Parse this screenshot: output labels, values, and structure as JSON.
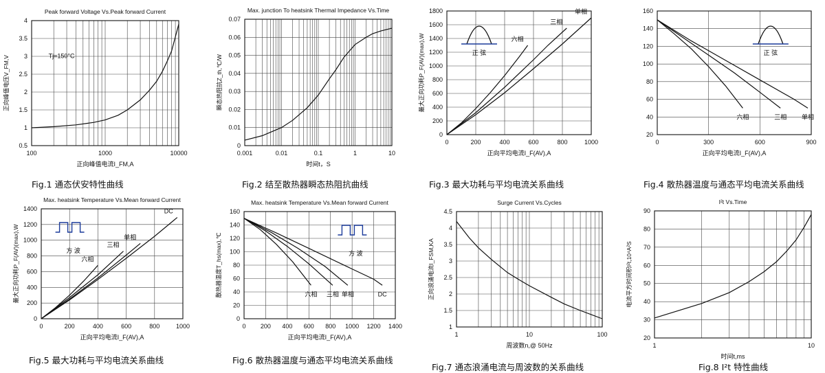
{
  "figures": [
    {
      "caption": "Fig.1 通态伏安特性曲线",
      "chart_data": {
        "type": "line",
        "title": "Peak forward Voltage Vs.Peak forward Current",
        "xlabel": "正向峰值电流I_FM,A",
        "ylabel": "正向峰值电压V_FM,V",
        "x_scale": "log",
        "xlim": [
          100,
          10000
        ],
        "ylim": [
          0.5,
          4
        ],
        "x_ticks": [
          100,
          1000,
          10000
        ],
        "x_tick_labels": [
          "100",
          "1000",
          "10000"
        ],
        "y_ticks": [
          0.5,
          1,
          1.5,
          2,
          2.5,
          3,
          3.5,
          4
        ],
        "y_tick_labels": [
          "0.5",
          "1",
          "1.5",
          "2",
          "2.5",
          "3",
          "3.5",
          "4"
        ],
        "grid": true,
        "annotations": [
          {
            "text": "Tj=150°C",
            "x": 170,
            "y": 2.95
          }
        ],
        "series": [
          {
            "x": [
              100,
              200,
              400,
              700,
              1000,
              1500,
              2000,
              3000,
              4000,
              5000,
              6000,
              7000,
              8000,
              10000
            ],
            "y": [
              1.0,
              1.03,
              1.08,
              1.15,
              1.22,
              1.35,
              1.5,
              1.78,
              2.05,
              2.3,
              2.58,
              2.87,
              3.15,
              3.9
            ]
          }
        ]
      }
    },
    {
      "caption": "Fig.2 结至散热器瞬态热阻抗曲线",
      "chart_data": {
        "type": "line",
        "title": "Max. junction To heatsink Thermal Impedance Vs.Time",
        "xlabel": "时间t，S",
        "ylabel": "瞬态热阻抗Z_th,℃/W",
        "x_scale": "log",
        "xlim": [
          0.001,
          10
        ],
        "ylim": [
          0,
          0.07
        ],
        "x_ticks": [
          0.001,
          0.01,
          0.1,
          1,
          10
        ],
        "x_tick_labels": [
          "0.001",
          "0.01",
          "0.1",
          "1",
          "10"
        ],
        "y_ticks": [
          0,
          0.01,
          0.02,
          0.03,
          0.04,
          0.05,
          0.06,
          0.07
        ],
        "y_tick_labels": [
          "0",
          "0.01",
          "0.02",
          "0.03",
          "0.04",
          "0.05",
          "0.06",
          "0.07"
        ],
        "grid": true,
        "series": [
          {
            "x": [
              0.001,
              0.003,
              0.01,
              0.02,
              0.05,
              0.1,
              0.2,
              0.3,
              0.5,
              1,
              2,
              3,
              5,
              10
            ],
            "y": [
              0.003,
              0.0055,
              0.01,
              0.014,
              0.021,
              0.028,
              0.037,
              0.042,
              0.049,
              0.056,
              0.06,
              0.062,
              0.0635,
              0.065
            ]
          }
        ]
      }
    },
    {
      "caption": "Fig.3 最大功耗与平均电流关系曲线",
      "chart_data": {
        "type": "line",
        "title": "",
        "xlabel": "正向平均电流I_F(AV),A",
        "ylabel": "最大正向功耗P_F(AV)(max),W",
        "xlim": [
          0,
          1000
        ],
        "ylim": [
          0,
          1800
        ],
        "x_ticks": [
          0,
          200,
          400,
          600,
          800,
          1000
        ],
        "x_tick_labels": [
          "0",
          "200",
          "400",
          "600",
          "800",
          "1000"
        ],
        "y_ticks": [
          0,
          200,
          400,
          600,
          800,
          1000,
          1200,
          1400,
          1600,
          1800
        ],
        "y_tick_labels": [
          "0",
          "200",
          "400",
          "600",
          "800",
          "1000",
          "1200",
          "1400",
          "1600",
          "1800"
        ],
        "grid": true,
        "inset": "正 弦",
        "series": [
          {
            "name": "六相",
            "x": [
              0,
              100,
              200,
              300,
              400,
              500,
              560
            ],
            "y": [
              0,
              170,
              380,
              610,
              860,
              1130,
              1300
            ],
            "label_at": [
              300,
              760
            ]
          },
          {
            "name": "三相",
            "x": [
              0,
              200,
              400,
              600,
              700,
              830
            ],
            "y": [
              0,
              320,
              690,
              1090,
              1300,
              1550
            ],
            "label_at": [
              640,
              1380
            ]
          },
          {
            "name": "单相",
            "x": [
              0,
              200,
              400,
              600,
              800,
              1000
            ],
            "y": [
              0,
              290,
              610,
              960,
              1320,
              1700
            ],
            "label_at": [
              880,
              1650
            ]
          }
        ]
      }
    },
    {
      "caption": "Fig.4 散热器温度与通态平均电流关系曲线",
      "chart_data": {
        "type": "line",
        "title": "",
        "xlabel": "正向平均电流I_F(AV),A",
        "ylabel": "",
        "xlim": [
          0,
          900
        ],
        "ylim": [
          20,
          160
        ],
        "x_ticks": [
          0,
          300,
          600,
          900
        ],
        "x_tick_labels": [
          "0",
          "300",
          "600",
          "900"
        ],
        "y_ticks": [
          20,
          40,
          60,
          80,
          100,
          120,
          140,
          160
        ],
        "y_tick_labels": [
          "20",
          "40",
          "60",
          "80",
          "100",
          "120",
          "140",
          "160"
        ],
        "grid": true,
        "inset": "正 弦",
        "series": [
          {
            "name": "六相",
            "x": [
              0,
              100,
              200,
              300,
              400,
              500
            ],
            "y": [
              150,
              134,
              117,
              97,
              75,
              50
            ]
          },
          {
            "name": "三相",
            "x": [
              0,
              150,
              300,
              450,
              600,
              720
            ],
            "y": [
              150,
              130,
              110,
              90,
              68,
              50
            ]
          },
          {
            "name": "单相",
            "x": [
              0,
              200,
              400,
              600,
              800,
              880
            ],
            "y": [
              150,
              126,
              104,
              82,
              60,
              50
            ]
          }
        ]
      }
    },
    {
      "caption": "Fig.5 最大功耗与平均电流关系曲线",
      "chart_data": {
        "type": "line",
        "title": "Max. heatsink Temperature Vs.Mean forward Current",
        "xlabel": "正向平均电流I_F(AV),A",
        "ylabel": "最大正向功耗P_F(AV)(max),W",
        "xlim": [
          0,
          1000
        ],
        "ylim": [
          0,
          1400
        ],
        "x_ticks": [
          0,
          200,
          400,
          600,
          800,
          1000
        ],
        "x_tick_labels": [
          "0",
          "200",
          "400",
          "600",
          "800",
          "1000"
        ],
        "y_ticks": [
          0,
          200,
          400,
          600,
          800,
          1000,
          1200,
          1400
        ],
        "y_tick_labels": [
          "0",
          "200",
          "400",
          "600",
          "800",
          "1000",
          "1200",
          "1400"
        ],
        "grid": true,
        "inset": "方 波",
        "series": [
          {
            "name": "六相",
            "x": [
              0,
              100,
              200,
              300,
              400
            ],
            "y": [
              0,
              140,
              300,
              480,
              680
            ]
          },
          {
            "name": "三相",
            "x": [
              0,
              200,
              400,
              580
            ],
            "y": [
              0,
              270,
              560,
              860
            ]
          },
          {
            "name": "单相",
            "x": [
              0,
              200,
              400,
              600,
              700
            ],
            "y": [
              0,
              250,
              520,
              810,
              960
            ]
          },
          {
            "name": "DC",
            "x": [
              0,
              200,
              400,
              600,
              800,
              960
            ],
            "y": [
              0,
              240,
              500,
              770,
              1050,
              1290
            ]
          }
        ]
      }
    },
    {
      "caption": "Fig.6 散热器温度与通态平均电流关系曲线",
      "chart_data": {
        "type": "line",
        "title": "Max. heatsink Temperature Vs.Mean forward Current",
        "xlabel": "正向平均电流I_F(AV),A",
        "ylabel": "散热器温度T_hs(max),℃",
        "xlim": [
          0,
          1400
        ],
        "ylim": [
          0,
          160
        ],
        "x_ticks": [
          0,
          200,
          400,
          600,
          800,
          1000,
          1200,
          1400
        ],
        "x_tick_labels": [
          "0",
          "200",
          "400",
          "600",
          "800",
          "1000",
          "1200",
          "1400"
        ],
        "y_ticks": [
          0,
          20,
          40,
          60,
          80,
          100,
          120,
          140,
          160
        ],
        "y_tick_labels": [
          "0",
          "20",
          "40",
          "60",
          "80",
          "100",
          "120",
          "140",
          "160"
        ],
        "grid": true,
        "inset": "方 波",
        "series": [
          {
            "name": "六相",
            "x": [
              0,
              150,
              300,
              450,
              620
            ],
            "y": [
              150,
              133,
              111,
              85,
              50
            ]
          },
          {
            "name": "三相",
            "x": [
              0,
              200,
              400,
              600,
              820
            ],
            "y": [
              150,
              131,
              108,
              82,
              50
            ]
          },
          {
            "name": "单相",
            "x": [
              0,
              250,
              500,
              750,
              960
            ],
            "y": [
              150,
              129,
              105,
              78,
              50
            ]
          },
          {
            "name": "DC",
            "x": [
              0,
              300,
              600,
              900,
              1200,
              1280
            ],
            "y": [
              150,
              128,
              105,
              82,
              59,
              50
            ]
          }
        ]
      }
    },
    {
      "caption": "Fig.7 通态浪涌电流与周波数的关系曲线",
      "chart_data": {
        "type": "line",
        "title": "Surge Current Vs.Cycles",
        "xlabel": "周波数n,@ 50Hz",
        "ylabel": "正向浪涌电流I_FSM,KA",
        "x_scale": "log",
        "xlim": [
          1,
          100
        ],
        "ylim": [
          1,
          4.5
        ],
        "x_ticks": [
          1,
          10,
          100
        ],
        "x_tick_labels": [
          "1",
          "10",
          "100"
        ],
        "y_ticks": [
          1,
          1.5,
          2,
          2.5,
          3,
          3.5,
          4,
          4.5
        ],
        "y_tick_labels": [
          "1",
          "1.5",
          "2",
          "2.5",
          "3",
          "3.5",
          "4",
          "4.5"
        ],
        "grid": true,
        "series": [
          {
            "x": [
              1,
              1.5,
              2,
              3,
              5,
              7,
              10,
              20,
              30,
              50,
              70,
              100
            ],
            "y": [
              4.2,
              3.7,
              3.4,
              3.05,
              2.65,
              2.45,
              2.25,
              1.9,
              1.7,
              1.5,
              1.38,
              1.25
            ]
          }
        ]
      }
    },
    {
      "caption": "Fig.8 I²t 特性曲线",
      "chart_data": {
        "type": "line",
        "title": "I²t Vs.Time",
        "xlabel": "时间t,ms",
        "ylabel": "电流平方时间积I²t,10⁴A²S",
        "x_scale": "log",
        "xlim": [
          1,
          10
        ],
        "ylim": [
          20,
          90
        ],
        "x_ticks": [
          1,
          10
        ],
        "x_tick_labels": [
          "1",
          "10"
        ],
        "y_ticks": [
          20,
          30,
          40,
          50,
          60,
          70,
          80,
          90
        ],
        "y_tick_labels": [
          "20",
          "30",
          "40",
          "50",
          "60",
          "70",
          "80",
          "90"
        ],
        "grid": true,
        "series": [
          {
            "x": [
              1,
              2,
              3,
              4,
              5,
              6,
              7,
              8,
              9,
              10
            ],
            "y": [
              31,
              39,
              45,
              51,
              56.5,
              62,
              68,
              74,
              81,
              88
            ]
          }
        ]
      }
    }
  ]
}
